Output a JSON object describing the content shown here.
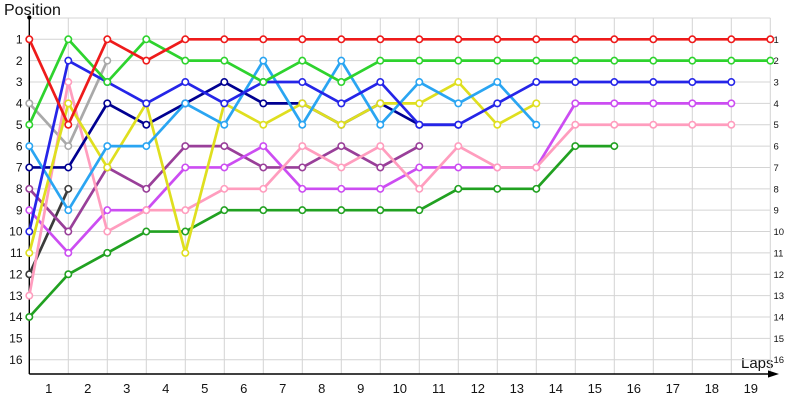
{
  "chart_data": {
    "type": "line",
    "title": "Position",
    "xlabel": "Laps",
    "ylabel": "Position",
    "x_tick_labels": [
      "1",
      "2",
      "3",
      "4",
      "5",
      "6",
      "7",
      "8",
      "9",
      "10",
      "11",
      "12",
      "13",
      "14",
      "15",
      "16",
      "17",
      "18",
      "19"
    ],
    "y_tick_labels_left": [
      "1",
      "2",
      "3",
      "4",
      "5",
      "6",
      "7",
      "8",
      "9",
      "10",
      "11",
      "12",
      "13",
      "14",
      "15",
      "16"
    ],
    "y_tick_labels_right": [
      "1",
      "2",
      "3",
      "4",
      "5",
      "6",
      "7",
      "8",
      "9",
      "10",
      "11",
      "12",
      "13",
      "14",
      "15",
      "16"
    ],
    "y_range": [
      1,
      16
    ],
    "y_inverted": true,
    "x_gridlines": 20,
    "grid": "on",
    "legend": "none",
    "note": "positions[i] is the car position at lap-boundary gridline i (gridline 0 = start); shorter arrays = car dropped out of the chart at its last point",
    "series": [
      {
        "name": "gray-car",
        "color": "#a9a9a9",
        "positions": [
          4,
          6,
          2
        ]
      },
      {
        "name": "black-car",
        "color": "#3c3c3c",
        "positions": [
          12,
          8
        ]
      },
      {
        "name": "dark-green-car",
        "color": "#21a121",
        "positions": [
          14,
          12,
          11,
          10,
          10,
          9,
          9,
          9,
          9,
          9,
          9,
          8,
          8,
          8,
          6,
          6
        ]
      },
      {
        "name": "purple-car",
        "color": "#993f99",
        "positions": [
          8,
          10,
          7,
          8,
          6,
          6,
          7,
          7,
          6,
          7,
          6
        ]
      },
      {
        "name": "magenta-car",
        "color": "#cc4df2",
        "positions": [
          9,
          11,
          9,
          9,
          7,
          7,
          6,
          8,
          8,
          8,
          7,
          7,
          7,
          7,
          4,
          4,
          4,
          4,
          4
        ]
      },
      {
        "name": "pink-car",
        "color": "#ff9dbe",
        "positions": [
          13,
          3,
          10,
          9,
          9,
          8,
          8,
          6,
          7,
          6,
          8,
          6,
          7,
          7,
          5,
          5,
          5,
          5,
          5
        ]
      },
      {
        "name": "navy-car",
        "color": "#000091",
        "positions": [
          7,
          7,
          4,
          5,
          4,
          3,
          4,
          4,
          5,
          4,
          5,
          5
        ]
      },
      {
        "name": "yellow-car",
        "color": "#dfdf1f",
        "positions": [
          11,
          4,
          7,
          4,
          11,
          4,
          5,
          4,
          5,
          4,
          4,
          3,
          5,
          4
        ]
      },
      {
        "name": "cyan-car",
        "color": "#2aa5f2",
        "positions": [
          6,
          9,
          6,
          6,
          4,
          5,
          2,
          5,
          2,
          5,
          3,
          4,
          3,
          5
        ]
      },
      {
        "name": "blue-car",
        "color": "#2525e8",
        "positions": [
          10,
          2,
          3,
          4,
          3,
          4,
          3,
          3,
          4,
          3,
          5,
          5,
          4,
          3,
          3,
          3,
          3,
          3,
          3
        ]
      },
      {
        "name": "green-car",
        "color": "#2ed32e",
        "positions": [
          5,
          1,
          3,
          1,
          2,
          2,
          3,
          2,
          3,
          2,
          2,
          2,
          2,
          2,
          2,
          2,
          2,
          2,
          2,
          2
        ]
      },
      {
        "name": "red-car",
        "color": "#ee1b1b",
        "positions": [
          1,
          5,
          1,
          2,
          1,
          1,
          1,
          1,
          1,
          1,
          1,
          1,
          1,
          1,
          1,
          1,
          1,
          1,
          1,
          1
        ]
      }
    ],
    "final_order_visible": {
      "1": "red-car",
      "2": "green-car",
      "3": "blue-car",
      "4": "magenta-car",
      "5": "pink-car",
      "6": "dark-green-car"
    },
    "style": {
      "grid_color": "#d4d4d4",
      "axis_color": "#000000",
      "tick_color": "#131313",
      "marker_fill": "#ffffff",
      "background": "#ffffff"
    }
  }
}
